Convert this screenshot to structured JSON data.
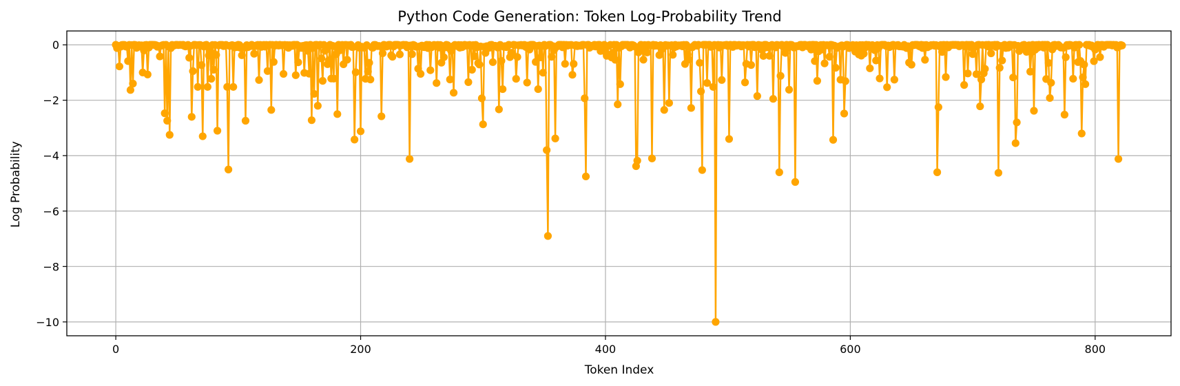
{
  "chart_data": {
    "type": "line",
    "title": "Python Code Generation: Token Log-Probability Trend",
    "xlabel": "Token Index",
    "ylabel": "Log Probability",
    "xlim": [
      -40,
      862
    ],
    "ylim": [
      -10.5,
      0.5
    ],
    "xticks": [
      0,
      200,
      400,
      600,
      800
    ],
    "yticks": [
      0,
      -2,
      -4,
      -6,
      -8,
      -10
    ],
    "xtick_labels": [
      "0",
      "200",
      "400",
      "600",
      "800"
    ],
    "ytick_labels": [
      "0",
      "−2",
      "−4",
      "−6",
      "−8",
      "−10"
    ],
    "grid": true,
    "color": "#FFA500",
    "marker": "circle",
    "n_points": 823,
    "series": [
      {
        "values_note": "",
        "dips": [
          [
            3,
            -0.78
          ],
          [
            12,
            -1.63
          ],
          [
            14,
            -1.4
          ],
          [
            22,
            -1.0
          ],
          [
            26,
            -1.07
          ],
          [
            40,
            -2.47
          ],
          [
            42,
            -2.74
          ],
          [
            44,
            -3.25
          ],
          [
            62,
            -2.6
          ],
          [
            63,
            -0.95
          ],
          [
            67,
            -1.52
          ],
          [
            71,
            -3.3
          ],
          [
            75,
            -1.52
          ],
          [
            80,
            -0.9
          ],
          [
            83,
            -3.1
          ],
          [
            91,
            -1.52
          ],
          [
            92,
            -4.5
          ],
          [
            96,
            -1.52
          ],
          [
            106,
            -2.74
          ],
          [
            117,
            -1.27
          ],
          [
            127,
            -2.35
          ],
          [
            137,
            -1.93
          ],
          [
            137,
            -1.05
          ],
          [
            160,
            -2.72
          ],
          [
            162,
            -1.77
          ],
          [
            165,
            -2.2
          ],
          [
            169,
            -1.3
          ],
          [
            178,
            -1.22
          ],
          [
            181,
            -2.5
          ],
          [
            195,
            -3.42
          ],
          [
            200,
            -3.12
          ],
          [
            217,
            -2.58
          ],
          [
            240,
            -4.12
          ],
          [
            262,
            -1.38
          ],
          [
            273,
            -1.25
          ],
          [
            276,
            -1.73
          ],
          [
            291,
            -0.9
          ],
          [
            299,
            -1.93
          ],
          [
            300,
            -2.87
          ],
          [
            313,
            -2.33
          ],
          [
            316,
            -1.6
          ],
          [
            345,
            -1.6
          ],
          [
            352,
            -3.8
          ],
          [
            353,
            -6.9
          ],
          [
            359,
            -3.38
          ],
          [
            383,
            -1.93
          ],
          [
            384,
            -4.75
          ],
          [
            410,
            -2.15
          ],
          [
            412,
            -1.42
          ],
          [
            425,
            -4.38
          ],
          [
            426,
            -4.18
          ],
          [
            438,
            -4.1
          ],
          [
            448,
            -2.35
          ],
          [
            452,
            -2.1
          ],
          [
            470,
            -2.28
          ],
          [
            478,
            -1.68
          ],
          [
            479,
            -4.52
          ],
          [
            488,
            -1.52
          ],
          [
            490,
            -10.0
          ],
          [
            495,
            -1.27
          ],
          [
            501,
            -3.4
          ],
          [
            524,
            -1.85
          ],
          [
            537,
            -1.95
          ],
          [
            542,
            -4.6
          ],
          [
            550,
            -1.62
          ],
          [
            555,
            -4.95
          ],
          [
            573,
            -1.3
          ],
          [
            586,
            -3.43
          ],
          [
            595,
            -2.48
          ],
          [
            630,
            -1.53
          ],
          [
            693,
            -1.45
          ],
          [
            706,
            -2.22
          ],
          [
            671,
            -4.6
          ],
          [
            672,
            -2.25
          ],
          [
            721,
            -4.62
          ],
          [
            722,
            -0.83
          ],
          [
            735,
            -3.55
          ],
          [
            736,
            -2.8
          ],
          [
            750,
            -2.38
          ],
          [
            763,
            -1.92
          ],
          [
            764,
            -1.37
          ],
          [
            775,
            -2.52
          ],
          [
            789,
            -3.2
          ],
          [
            792,
            -1.42
          ],
          [
            819,
            -4.12
          ]
        ]
      }
    ]
  }
}
